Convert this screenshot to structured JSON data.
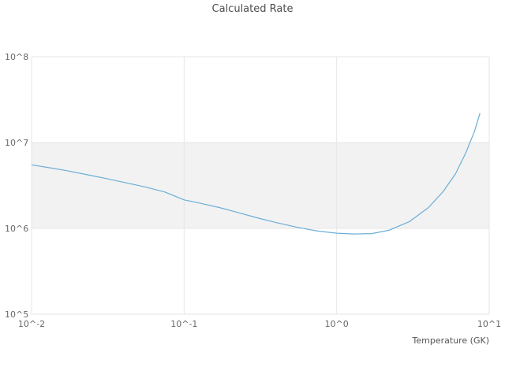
{
  "chart_data": {
    "type": "line",
    "title": "Calculated Rate",
    "xlabel": "Temperature (GK)",
    "ylabel": "",
    "x_scale": "log",
    "y_scale": "log",
    "xlim": [
      0.01,
      10
    ],
    "ylim": [
      100000,
      100000000
    ],
    "x_ticks": [
      "10^-2",
      "10^-1",
      "10^0",
      "10^1"
    ],
    "x_tick_values": [
      0.01,
      0.1,
      1,
      10
    ],
    "y_ticks": [
      "10^5",
      "10^6",
      "10^7",
      "10^8"
    ],
    "y_tick_values": [
      100000,
      1000000,
      10000000,
      100000000
    ],
    "grid": true,
    "legend": "none",
    "line_color": "#6baed6",
    "grid_color": "#e6e6e6",
    "shaded_band": {
      "y_min": 1000000,
      "y_max": 10000000,
      "color": "#f2f2f2"
    },
    "series": [
      {
        "name": "calculated-rate",
        "x": [
          0.01,
          0.013,
          0.017,
          0.022,
          0.03,
          0.04,
          0.055,
          0.075,
          0.1,
          0.13,
          0.17,
          0.22,
          0.3,
          0.4,
          0.55,
          0.75,
          1.0,
          1.3,
          1.7,
          2.2,
          3.0,
          4.0,
          5.0,
          6.0,
          7.0,
          8.0,
          8.7
        ],
        "y": [
          5500000,
          5100000,
          4700000,
          4300000,
          3850000,
          3450000,
          3050000,
          2650000,
          2150000,
          1950000,
          1750000,
          1550000,
          1330000,
          1170000,
          1030000,
          930000,
          880000,
          860000,
          870000,
          950000,
          1200000,
          1750000,
          2700000,
          4300000,
          7500000,
          13500000,
          22000000
        ]
      }
    ]
  }
}
